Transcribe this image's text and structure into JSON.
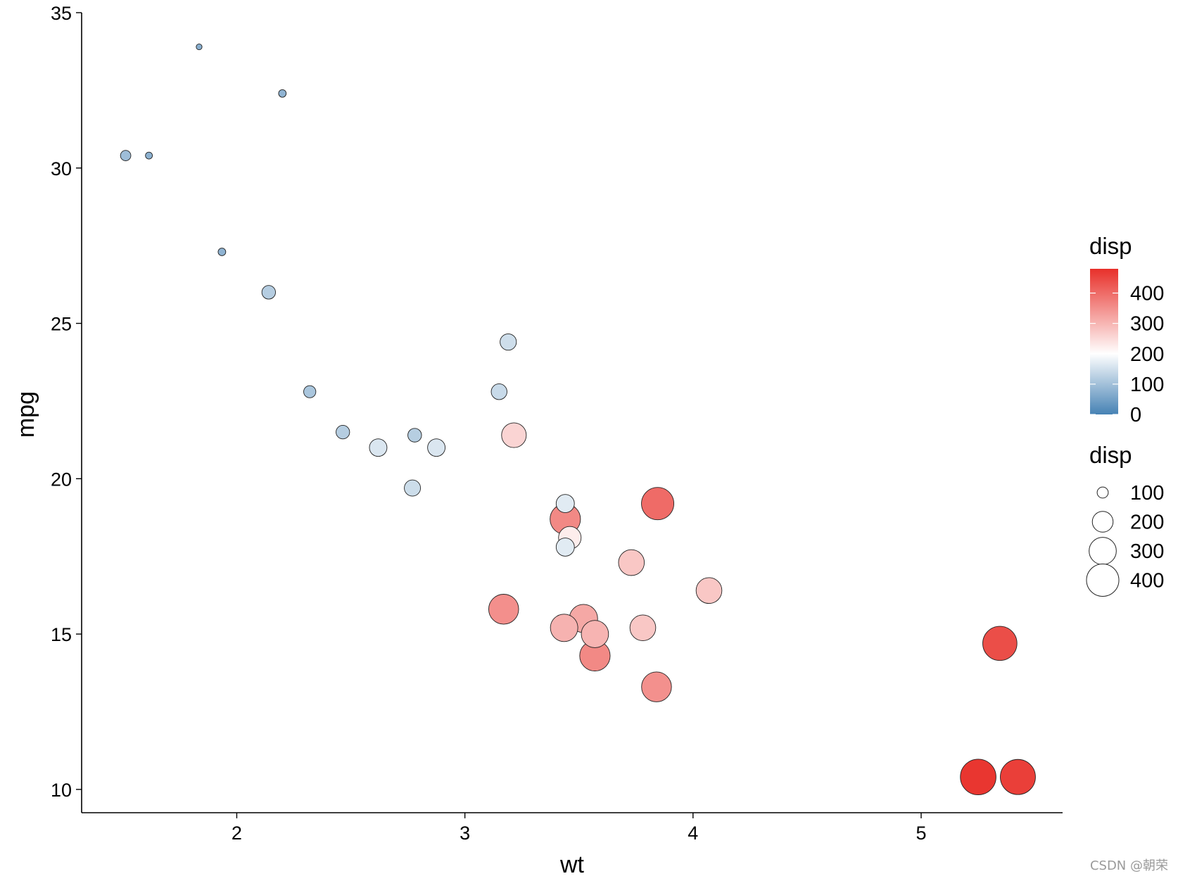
{
  "chart_data": {
    "type": "scatter",
    "title": "",
    "xlabel": "wt",
    "ylabel": "mpg",
    "xlim": [
      1.32,
      5.62
    ],
    "ylim": [
      9.25,
      35.0
    ],
    "xticks": [
      2,
      3,
      4,
      5
    ],
    "yticks": [
      10,
      15,
      20,
      25,
      30,
      35
    ],
    "grid": false,
    "points": [
      {
        "x": 2.62,
        "y": 21.0,
        "disp": 160
      },
      {
        "x": 2.875,
        "y": 21.0,
        "disp": 160
      },
      {
        "x": 2.32,
        "y": 22.8,
        "disp": 108
      },
      {
        "x": 3.215,
        "y": 21.4,
        "disp": 258
      },
      {
        "x": 3.44,
        "y": 18.7,
        "disp": 360
      },
      {
        "x": 3.46,
        "y": 18.1,
        "disp": 225
      },
      {
        "x": 3.57,
        "y": 14.3,
        "disp": 360
      },
      {
        "x": 3.19,
        "y": 24.4,
        "disp": 146.7
      },
      {
        "x": 3.15,
        "y": 22.8,
        "disp": 140.8
      },
      {
        "x": 3.44,
        "y": 19.2,
        "disp": 167.6
      },
      {
        "x": 3.44,
        "y": 17.8,
        "disp": 167.6
      },
      {
        "x": 4.07,
        "y": 16.4,
        "disp": 275.8
      },
      {
        "x": 3.73,
        "y": 17.3,
        "disp": 275.8
      },
      {
        "x": 3.78,
        "y": 15.2,
        "disp": 275.8
      },
      {
        "x": 5.25,
        "y": 10.4,
        "disp": 472
      },
      {
        "x": 5.424,
        "y": 10.4,
        "disp": 460
      },
      {
        "x": 5.345,
        "y": 14.7,
        "disp": 440
      },
      {
        "x": 2.2,
        "y": 32.4,
        "disp": 78.7
      },
      {
        "x": 1.615,
        "y": 30.4,
        "disp": 75.7
      },
      {
        "x": 1.835,
        "y": 33.9,
        "disp": 71.1
      },
      {
        "x": 2.465,
        "y": 21.5,
        "disp": 120.1
      },
      {
        "x": 3.52,
        "y": 15.5,
        "disp": 318
      },
      {
        "x": 3.435,
        "y": 15.2,
        "disp": 304
      },
      {
        "x": 3.84,
        "y": 13.3,
        "disp": 350
      },
      {
        "x": 3.845,
        "y": 19.2,
        "disp": 400
      },
      {
        "x": 1.935,
        "y": 27.3,
        "disp": 79
      },
      {
        "x": 2.14,
        "y": 26.0,
        "disp": 120.3
      },
      {
        "x": 1.513,
        "y": 30.4,
        "disp": 95.1
      },
      {
        "x": 3.17,
        "y": 15.8,
        "disp": 351
      },
      {
        "x": 2.77,
        "y": 19.7,
        "disp": 145
      },
      {
        "x": 3.57,
        "y": 15.0,
        "disp": 301
      },
      {
        "x": 2.78,
        "y": 21.4,
        "disp": 121
      }
    ],
    "color_scale": {
      "title": "disp",
      "low": "#4682B4",
      "mid": "#FFFFFF",
      "high": "#E8302A",
      "midpoint": 200,
      "limits": [
        0,
        480
      ],
      "breaks": [
        "0",
        "100",
        "200",
        "300",
        "400"
      ]
    },
    "size_legend": {
      "title": "disp",
      "breaks": [
        "100",
        "200",
        "300",
        "400"
      ]
    },
    "legend_position": "right"
  },
  "watermark": "CSDN @朝荣"
}
